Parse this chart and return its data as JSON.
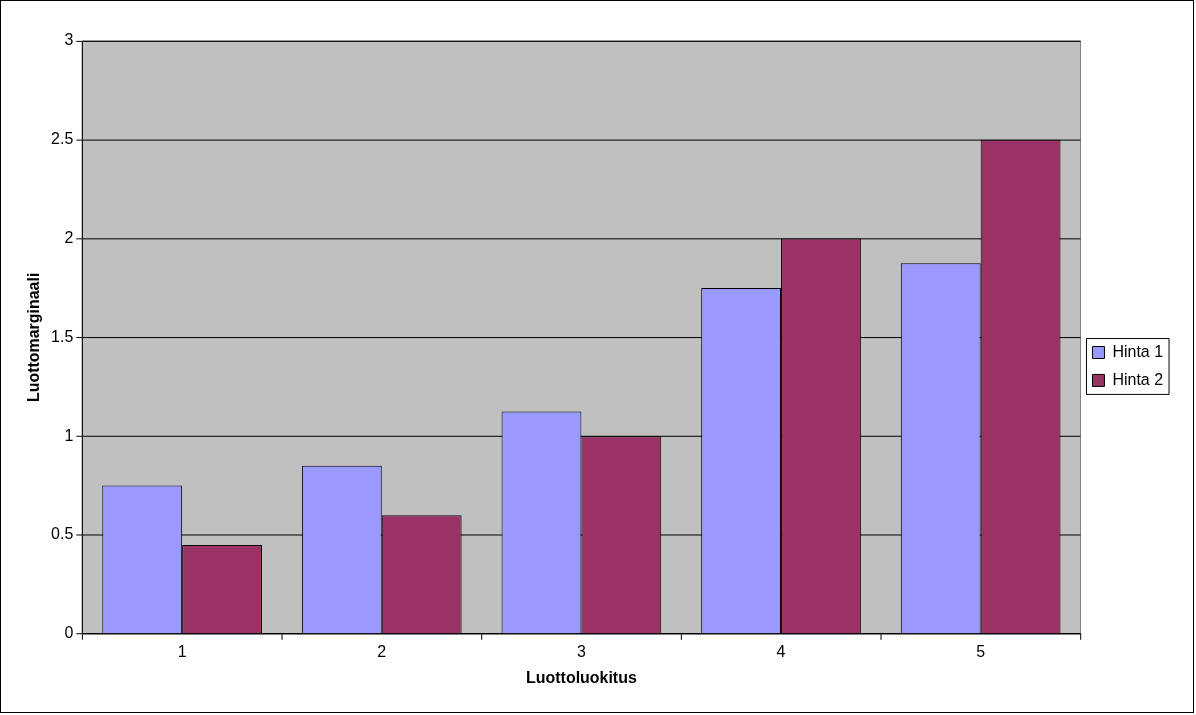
{
  "chart_data": {
    "type": "bar",
    "xlabel": "Luottoluokitus",
    "ylabel": "Luottomarginaali",
    "categories": [
      "1",
      "2",
      "3",
      "4",
      "5"
    ],
    "series": [
      {
        "name": "Hinta 1",
        "color": "#9999ff",
        "values": [
          0.75,
          0.85,
          1.125,
          1.75,
          1.875
        ]
      },
      {
        "name": "Hinta 2",
        "color": "#993366",
        "values": [
          0.45,
          0.6,
          1.0,
          2.0,
          2.5
        ]
      }
    ],
    "ylim": [
      0,
      3
    ],
    "yticks": [
      0,
      0.5,
      1,
      1.5,
      2,
      2.5,
      3
    ],
    "grid": "y",
    "legend": "right"
  }
}
